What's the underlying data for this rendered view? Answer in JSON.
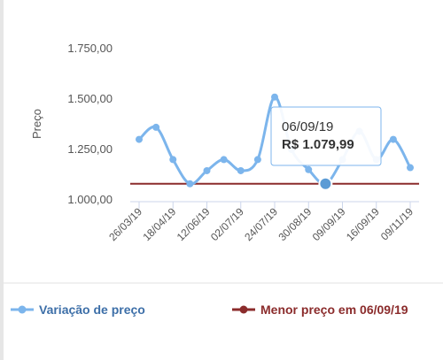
{
  "chart_data": {
    "type": "line",
    "y_label": "Preço",
    "categories": [
      "26/03/19",
      null,
      "18/04/19",
      null,
      "12/06/19",
      null,
      "02/07/19",
      null,
      "24/07/19",
      null,
      "30/08/19",
      null,
      "09/09/19",
      null,
      "16/09/19",
      null,
      "09/11/19"
    ],
    "series": [
      {
        "name": "Variação de preço",
        "color": "#7cb5ec",
        "values": [
          1300,
          1360,
          1200,
          1080,
          1145,
          1200,
          1145,
          1200,
          1510,
          1250,
          1150,
          1079.99,
          1200,
          1340,
          1200,
          1300,
          1160
        ]
      }
    ],
    "reference_line": {
      "name": "Menor preço em 06/09/19",
      "color": "#8b2c2c",
      "value": 1079.99
    },
    "ylim": [
      1000,
      1750
    ],
    "yticks": [
      {
        "value": 1000,
        "label": "1.000,00"
      },
      {
        "value": 1250,
        "label": "1.250,00"
      },
      {
        "value": 1500,
        "label": "1.500,00"
      },
      {
        "value": 1750,
        "label": "1.750,00"
      }
    ],
    "grid": false,
    "tooltip": {
      "index": 11,
      "date": "06/09/19",
      "price": "R$ 1.079,99"
    }
  }
}
